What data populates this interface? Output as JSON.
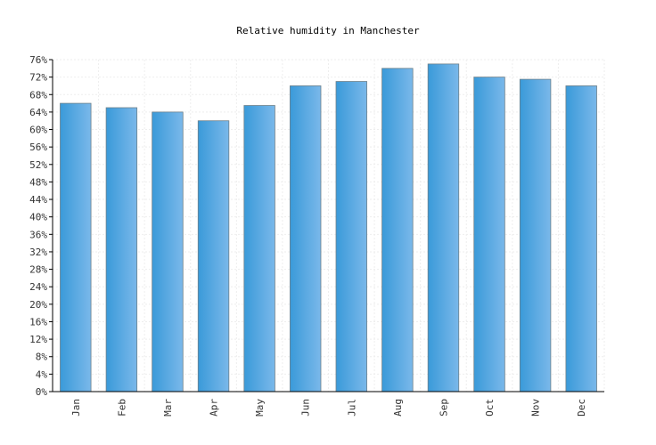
{
  "chart_data": {
    "type": "bar",
    "title": "Relative humidity in Manchester",
    "xlabel": "",
    "ylabel": "",
    "categories": [
      "Jan",
      "Feb",
      "Mar",
      "Apr",
      "May",
      "Jun",
      "Jul",
      "Aug",
      "Sep",
      "Oct",
      "Nov",
      "Dec"
    ],
    "values": [
      66,
      65,
      64,
      62,
      65.5,
      70,
      71,
      74,
      75,
      72,
      71.5,
      70
    ],
    "ylim": [
      0,
      76
    ],
    "yticks": [
      0,
      4,
      8,
      12,
      16,
      20,
      24,
      28,
      32,
      36,
      40,
      44,
      48,
      52,
      56,
      60,
      64,
      68,
      72,
      76
    ],
    "y_unit_suffix": "%",
    "grid": true,
    "legend": "none",
    "colors": {
      "bar_dark": "#3a9ad9",
      "bar_light": "#7ab8ea",
      "bar_outline": "#6b7f8a",
      "grid": "#eeeeee",
      "axis": "#000000"
    }
  }
}
